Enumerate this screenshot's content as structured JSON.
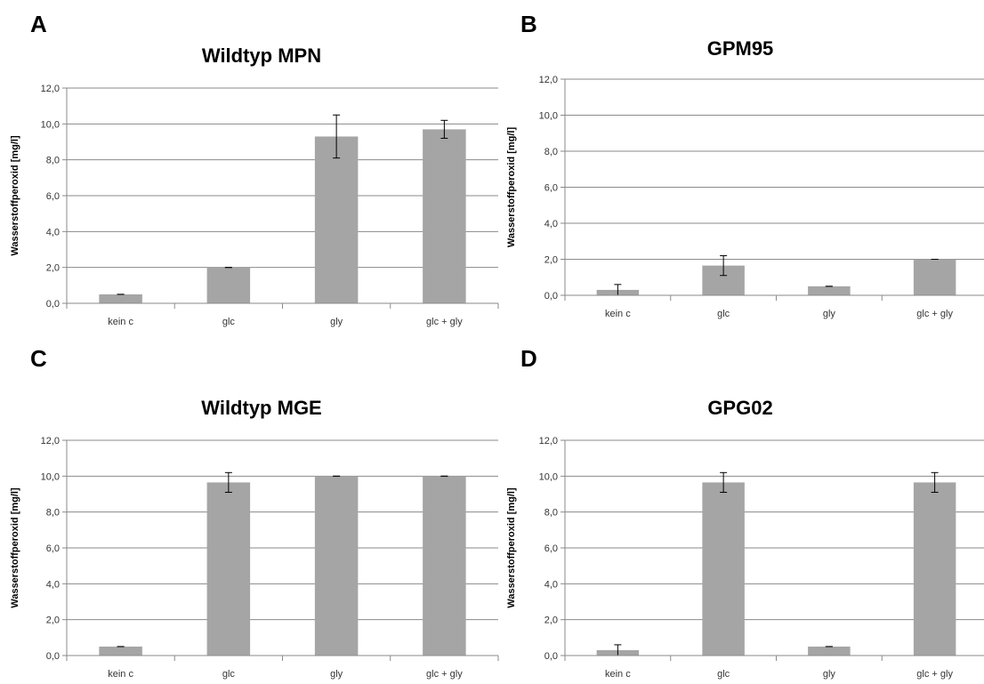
{
  "chart_data": [
    {
      "letter": "A",
      "type": "bar",
      "title": "Wildtyp MPN",
      "ylabel": "Wasserstoffperoxid [mg/l]",
      "ylim": [
        0,
        12
      ],
      "yticks": [
        "0,0",
        "2,0",
        "4,0",
        "6,0",
        "8,0",
        "10,0",
        "12,0"
      ],
      "grid": true,
      "categories": [
        "kein c",
        "glc",
        "gly",
        "glc + gly"
      ],
      "values": [
        0.5,
        2.0,
        9.3,
        9.7
      ],
      "errors": [
        0.0,
        0.0,
        1.2,
        0.5
      ],
      "bar_color": "#a5a5a5"
    },
    {
      "letter": "B",
      "type": "bar",
      "title": "GPM95",
      "ylabel": "Wasserstoffperoxid [mg/l]",
      "ylim": [
        0,
        12
      ],
      "yticks": [
        "0,0",
        "2,0",
        "4,0",
        "6,0",
        "8,0",
        "10,0",
        "12,0"
      ],
      "grid": true,
      "categories": [
        "kein c",
        "glc",
        "gly",
        "glc + gly"
      ],
      "values": [
        0.3,
        1.65,
        0.5,
        2.0
      ],
      "errors": [
        0.3,
        0.55,
        0.0,
        0.0
      ],
      "bar_color": "#a5a5a5"
    },
    {
      "letter": "C",
      "type": "bar",
      "title": "Wildtyp MGE",
      "ylabel": "Wasserstoffperoxid [mg/l]",
      "ylim": [
        0,
        12
      ],
      "yticks": [
        "0,0",
        "2,0",
        "4,0",
        "6,0",
        "8,0",
        "10,0",
        "12,0"
      ],
      "grid": true,
      "categories": [
        "kein c",
        "glc",
        "gly",
        "glc + gly"
      ],
      "values": [
        0.5,
        9.65,
        10.0,
        10.0
      ],
      "errors": [
        0.0,
        0.55,
        0.0,
        0.0
      ],
      "bar_color": "#a5a5a5"
    },
    {
      "letter": "D",
      "type": "bar",
      "title": "GPG02",
      "ylabel": "Wasserstoffperoxid [mg/l]",
      "ylim": [
        0,
        12
      ],
      "yticks": [
        "0,0",
        "2,0",
        "4,0",
        "6,0",
        "8,0",
        "10,0",
        "12,0"
      ],
      "grid": true,
      "categories": [
        "kein c",
        "glc",
        "gly",
        "glc + gly"
      ],
      "values": [
        0.3,
        9.65,
        0.5,
        9.65
      ],
      "errors": [
        0.3,
        0.55,
        0.0,
        0.55
      ],
      "bar_color": "#a5a5a5"
    }
  ]
}
